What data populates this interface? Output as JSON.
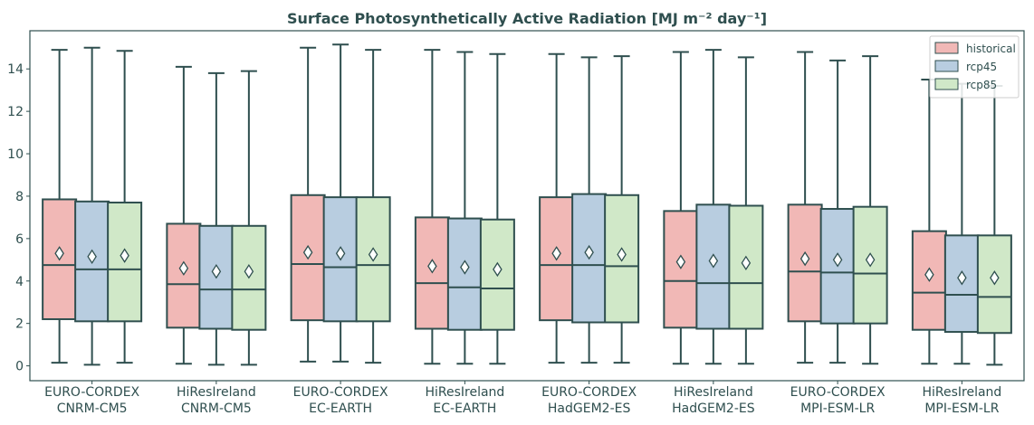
{
  "chart_data": {
    "type": "box",
    "title": "Surface Photosynthetically Active Radiation [MJ m⁻² day⁻¹]",
    "xlabel": "",
    "ylabel": "",
    "ylim": [
      -0.7,
      15.8
    ],
    "yticks": [
      0,
      2,
      4,
      6,
      8,
      10,
      12,
      14
    ],
    "grid": false,
    "legend_position": "top-right",
    "categories": [
      [
        "EURO-CORDEX",
        "CNRM-CM5"
      ],
      [
        "HiResIreland",
        "CNRM-CM5"
      ],
      [
        "EURO-CORDEX",
        "EC-EARTH"
      ],
      [
        "HiResIreland",
        "EC-EARTH"
      ],
      [
        "EURO-CORDEX",
        "HadGEM2-ES"
      ],
      [
        "HiResIreland",
        "HadGEM2-ES"
      ],
      [
        "EURO-CORDEX",
        "MPI-ESM-LR"
      ],
      [
        "HiResIreland",
        "MPI-ESM-LR"
      ]
    ],
    "series": [
      {
        "name": "historical",
        "color": "#f1b8b6",
        "boxes": [
          {
            "min": 0.15,
            "q1": 2.2,
            "median": 4.75,
            "q3": 7.85,
            "max": 14.9,
            "mean": 5.3
          },
          {
            "min": 0.1,
            "q1": 1.8,
            "median": 3.85,
            "q3": 6.7,
            "max": 14.1,
            "mean": 4.6
          },
          {
            "min": 0.2,
            "q1": 2.15,
            "median": 4.8,
            "q3": 8.05,
            "max": 15.0,
            "mean": 5.35
          },
          {
            "min": 0.1,
            "q1": 1.75,
            "median": 3.9,
            "q3": 7.0,
            "max": 14.9,
            "mean": 4.7
          },
          {
            "min": 0.15,
            "q1": 2.15,
            "median": 4.75,
            "q3": 7.95,
            "max": 14.7,
            "mean": 5.3
          },
          {
            "min": 0.1,
            "q1": 1.8,
            "median": 4.0,
            "q3": 7.3,
            "max": 14.8,
            "mean": 4.9
          },
          {
            "min": 0.15,
            "q1": 2.1,
            "median": 4.45,
            "q3": 7.6,
            "max": 14.8,
            "mean": 5.05
          },
          {
            "min": 0.1,
            "q1": 1.7,
            "median": 3.45,
            "q3": 6.35,
            "max": 13.5,
            "mean": 4.3
          }
        ]
      },
      {
        "name": "rcp45",
        "color": "#b8cde0",
        "boxes": [
          {
            "min": 0.05,
            "q1": 2.1,
            "median": 4.55,
            "q3": 7.75,
            "max": 15.0,
            "mean": 5.15
          },
          {
            "min": 0.05,
            "q1": 1.75,
            "median": 3.6,
            "q3": 6.6,
            "max": 13.8,
            "mean": 4.45
          },
          {
            "min": 0.2,
            "q1": 2.1,
            "median": 4.65,
            "q3": 7.95,
            "max": 15.15,
            "mean": 5.3
          },
          {
            "min": 0.1,
            "q1": 1.7,
            "median": 3.7,
            "q3": 6.95,
            "max": 14.8,
            "mean": 4.65
          },
          {
            "min": 0.15,
            "q1": 2.05,
            "median": 4.75,
            "q3": 8.1,
            "max": 14.55,
            "mean": 5.35
          },
          {
            "min": 0.1,
            "q1": 1.75,
            "median": 3.9,
            "q3": 7.6,
            "max": 14.9,
            "mean": 4.95
          },
          {
            "min": 0.15,
            "q1": 2.0,
            "median": 4.4,
            "q3": 7.4,
            "max": 14.4,
            "mean": 5.0
          },
          {
            "min": 0.1,
            "q1": 1.6,
            "median": 3.35,
            "q3": 6.15,
            "max": 13.3,
            "mean": 4.15
          }
        ]
      },
      {
        "name": "rcp85",
        "color": "#d0e8c8",
        "boxes": [
          {
            "min": 0.15,
            "q1": 2.1,
            "median": 4.55,
            "q3": 7.7,
            "max": 14.85,
            "mean": 5.2
          },
          {
            "min": 0.05,
            "q1": 1.7,
            "median": 3.6,
            "q3": 6.6,
            "max": 13.9,
            "mean": 4.45
          },
          {
            "min": 0.15,
            "q1": 2.1,
            "median": 4.75,
            "q3": 7.95,
            "max": 14.9,
            "mean": 5.25
          },
          {
            "min": 0.1,
            "q1": 1.7,
            "median": 3.65,
            "q3": 6.9,
            "max": 14.7,
            "mean": 4.55
          },
          {
            "min": 0.15,
            "q1": 2.05,
            "median": 4.7,
            "q3": 8.05,
            "max": 14.6,
            "mean": 5.25
          },
          {
            "min": 0.1,
            "q1": 1.75,
            "median": 3.9,
            "q3": 7.55,
            "max": 14.55,
            "mean": 4.85
          },
          {
            "min": 0.1,
            "q1": 2.0,
            "median": 4.35,
            "q3": 7.5,
            "max": 14.6,
            "mean": 5.0
          },
          {
            "min": 0.05,
            "q1": 1.55,
            "median": 3.25,
            "q3": 6.15,
            "max": 13.2,
            "mean": 4.15
          }
        ]
      }
    ],
    "style": {
      "edge_color": "#2f4f4f",
      "frame_color": "#2f4f4f"
    }
  }
}
